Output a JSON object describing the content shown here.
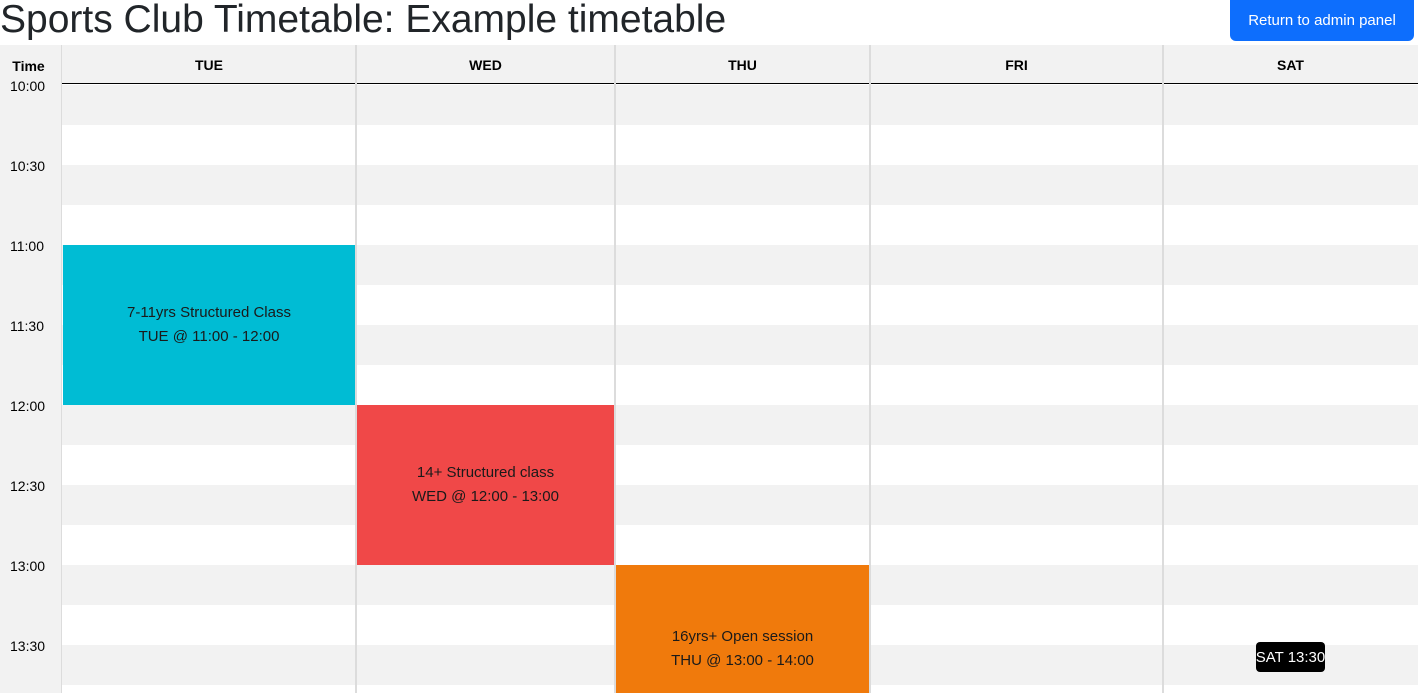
{
  "page": {
    "title": "Sports Club Timetable: Example timetable",
    "admin_button": "Return to admin panel"
  },
  "timetable": {
    "time_header": "Time",
    "days": [
      "TUE",
      "WED",
      "THU",
      "FRI",
      "SAT"
    ],
    "time_labels": [
      "10:00",
      "10:30",
      "11:00",
      "11:30",
      "12:00",
      "12:30",
      "13:00",
      "13:30"
    ],
    "events": [
      {
        "name": "7-11yrs Structured Class",
        "time": "TUE @ 11:00 - 12:00",
        "color": "#00bcd4"
      },
      {
        "name": "14+ Structured class",
        "time": "WED @ 12:00 - 13:00",
        "color": "#f04848"
      },
      {
        "name": "16yrs+ Open session",
        "time": "THU @ 13:00 - 14:00",
        "color": "#f07a0c"
      }
    ],
    "hover_badge": "SAT 13:30"
  },
  "colors": {
    "primary_button": "#0d6efd",
    "row_alt": "#f2f2f2",
    "grid_line": "#dcdcdc"
  }
}
